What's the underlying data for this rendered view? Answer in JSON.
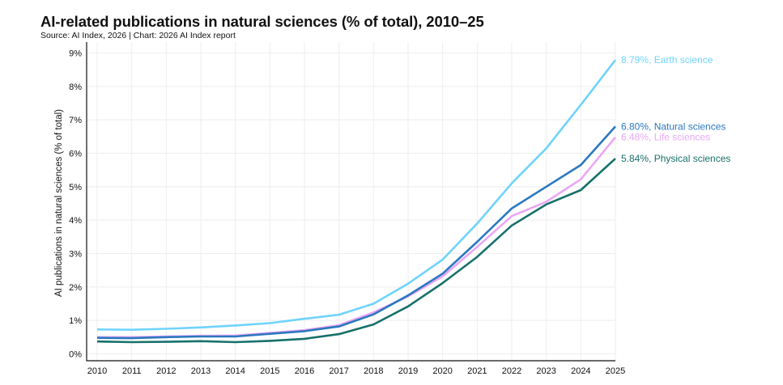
{
  "chart_data": {
    "type": "line",
    "title": "AI-related publications in natural sciences (% of total), 2010–25",
    "subtitle": "Source: AI Index, 2026 | Chart: 2026 AI Index report",
    "xlabel": "",
    "ylabel": "AI publications in natural sciences (% of total)",
    "x": [
      2010,
      2011,
      2012,
      2013,
      2014,
      2015,
      2016,
      2017,
      2018,
      2019,
      2020,
      2021,
      2022,
      2023,
      2024,
      2025
    ],
    "ylim": [
      0,
      9
    ],
    "yticks": [
      "0%",
      "1%",
      "2%",
      "3%",
      "4%",
      "5%",
      "6%",
      "7%",
      "8%",
      "9%"
    ],
    "grid": true,
    "series": [
      {
        "name": "Earth science",
        "end_label": "8.79%, Earth science",
        "color": "#6fd3fc",
        "values": [
          0.73,
          0.72,
          0.75,
          0.79,
          0.85,
          0.92,
          1.05,
          1.17,
          1.5,
          2.1,
          2.82,
          3.9,
          5.1,
          6.15,
          7.45,
          8.79
        ]
      },
      {
        "name": "Natural sciences",
        "end_label": "6.80%, Natural sciences",
        "color": "#2a78bf",
        "values": [
          0.48,
          0.47,
          0.5,
          0.52,
          0.52,
          0.6,
          0.68,
          0.82,
          1.18,
          1.75,
          2.4,
          3.35,
          4.35,
          5.0,
          5.65,
          6.8
        ]
      },
      {
        "name": "Life sciences",
        "end_label": "6.48%, Life sciences",
        "color": "#e9a7f6",
        "values": [
          0.5,
          0.5,
          0.52,
          0.54,
          0.55,
          0.63,
          0.71,
          0.86,
          1.24,
          1.72,
          2.32,
          3.2,
          4.12,
          4.55,
          5.22,
          6.48
        ]
      },
      {
        "name": "Physical sciences",
        "end_label": "5.84%, Physical sciences",
        "color": "#17706a",
        "values": [
          0.37,
          0.35,
          0.36,
          0.38,
          0.35,
          0.39,
          0.45,
          0.59,
          0.88,
          1.42,
          2.12,
          2.9,
          3.84,
          4.47,
          4.9,
          5.84
        ]
      }
    ]
  }
}
